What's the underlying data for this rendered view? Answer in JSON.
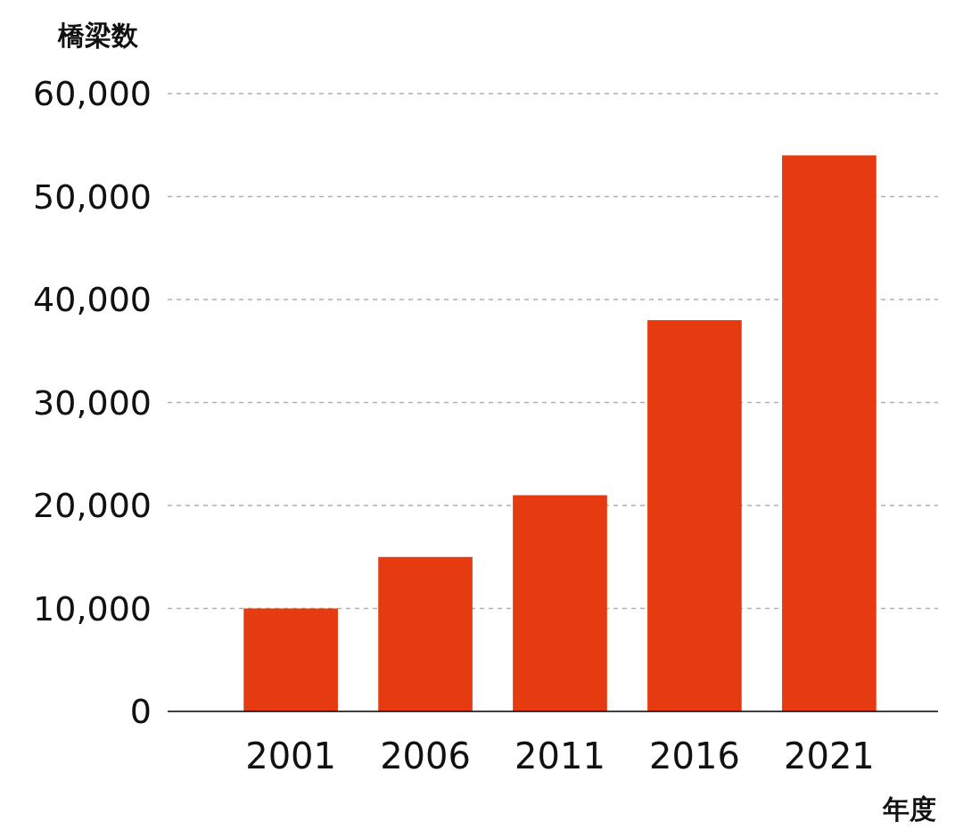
{
  "chart_data": {
    "type": "bar",
    "xlabel": "年度",
    "ylabel": "橋梁数",
    "categories": [
      "2001",
      "2006",
      "2011",
      "2016",
      "2021"
    ],
    "values": [
      10000,
      15000,
      21000,
      38000,
      54000
    ],
    "color": "#e63a10",
    "ylim": [
      0,
      60000
    ],
    "yticks": [
      {
        "value": 0,
        "label": "0"
      },
      {
        "value": 10000,
        "label": "10,000"
      },
      {
        "value": 20000,
        "label": "20,000"
      },
      {
        "value": 30000,
        "label": "30,000"
      },
      {
        "value": 40000,
        "label": "40,000"
      },
      {
        "value": 50000,
        "label": "50,000"
      },
      {
        "value": 60000,
        "label": "60,000"
      }
    ],
    "grid": "y"
  }
}
